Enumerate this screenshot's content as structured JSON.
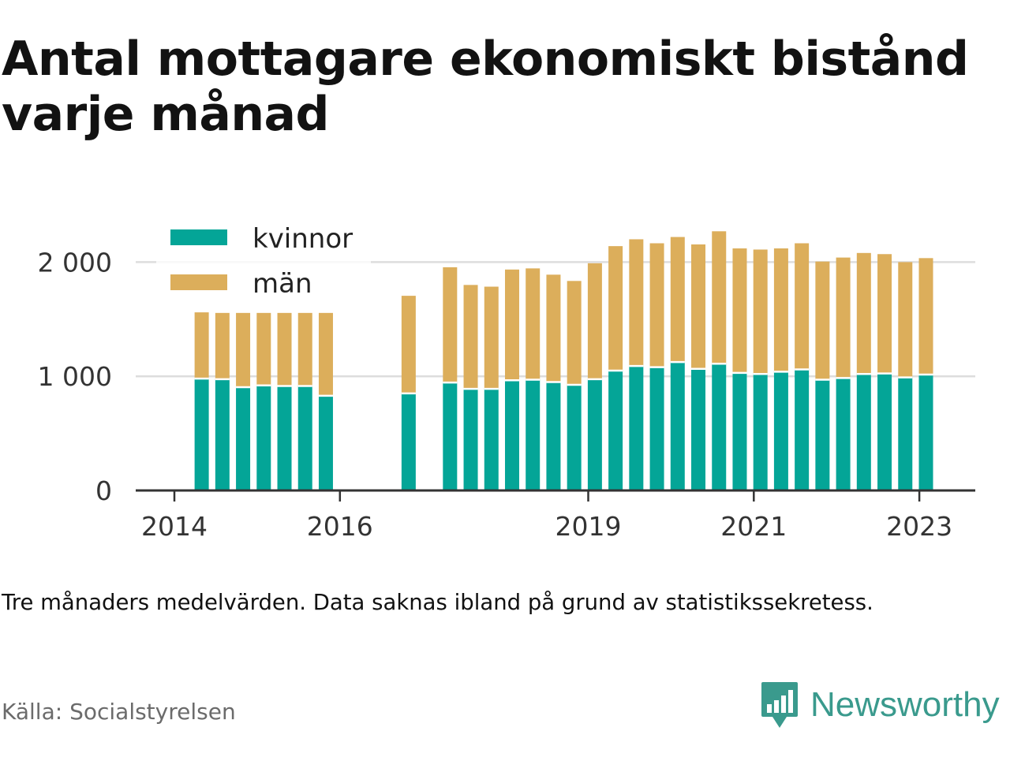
{
  "title": "Antal mottagare ekonomiskt bistånd varje månad",
  "caption": "Tre månaders medelvärden. Data saknas ibland på grund av statistikssekretess.",
  "source": "Källa: Socialstyrelsen",
  "brand": {
    "name": "Newsworthy",
    "color": "#3a9a8d",
    "icon": "bar-chart-speech-bubble-icon"
  },
  "colors": {
    "kvinnor": "#04a597",
    "man": "#dcae5b",
    "grid": "#dddddd",
    "axis": "#333333"
  },
  "legend": {
    "kvinnor": "kvinnor",
    "man": "män"
  },
  "chart_data": {
    "type": "bar",
    "stacked": true,
    "legend_position": "top-left",
    "grid": true,
    "ylim": [
      0,
      2300
    ],
    "yticks": [
      0,
      1000,
      2000
    ],
    "ytick_labels": [
      "0",
      "1 000",
      "2 000"
    ],
    "xticks": [
      2014,
      2016,
      2019,
      2021,
      2023
    ],
    "xtick_labels": [
      "2014",
      "2016",
      "2019",
      "2021",
      "2023"
    ],
    "x": [
      2014.33,
      2014.58,
      2014.83,
      2015.08,
      2015.33,
      2015.58,
      2015.83,
      2016.83,
      2017.33,
      2017.58,
      2017.83,
      2018.08,
      2018.33,
      2018.58,
      2018.83,
      2019.08,
      2019.33,
      2019.58,
      2019.83,
      2020.08,
      2020.33,
      2020.58,
      2020.83,
      2021.08,
      2021.33,
      2021.58,
      2021.83,
      2022.08,
      2022.33,
      2022.58,
      2022.83,
      2023.08
    ],
    "series": [
      {
        "name": "kvinnor",
        "values": [
          980,
          975,
          905,
          920,
          915,
          915,
          830,
          850,
          945,
          890,
          890,
          965,
          970,
          950,
          925,
          975,
          1050,
          1090,
          1080,
          1125,
          1065,
          1110,
          1030,
          1020,
          1040,
          1060,
          970,
          985,
          1020,
          1025,
          990,
          1015
        ]
      },
      {
        "name": "män",
        "values": [
          580,
          580,
          650,
          635,
          640,
          640,
          725,
          855,
          1010,
          910,
          895,
          970,
          975,
          940,
          910,
          1015,
          1090,
          1110,
          1085,
          1095,
          1090,
          1160,
          1090,
          1090,
          1080,
          1105,
          1035,
          1055,
          1060,
          1045,
          1010,
          1020
        ]
      }
    ]
  }
}
